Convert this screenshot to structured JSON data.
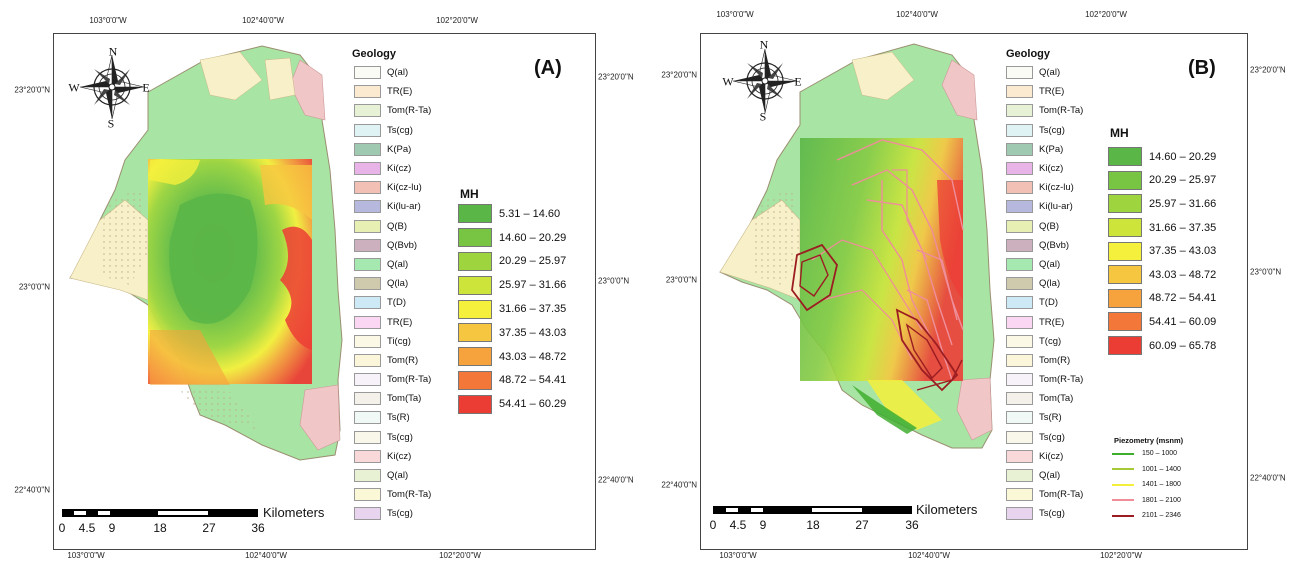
{
  "panels": [
    {
      "label": "(A)",
      "coords": {
        "top": [
          "103°0'0\"W",
          "102°40'0\"W",
          "102°20'0\"W"
        ],
        "bottom": [
          "103°0'0\"W",
          "102°40'0\"W",
          "102°20'0\"W"
        ],
        "left": [
          "23°20'0\"N",
          "23°0'0\"N",
          "22°40'0\"N"
        ],
        "right": [
          "23°20'0\"N",
          "23°0'0\"N",
          "22°40'0\"N"
        ]
      },
      "geology_title": "Geology",
      "geology_units": [
        "Q(al)",
        "TR(E)",
        "Tom(R-Ta)",
        "Ts(cg)",
        "K(Pa)",
        "Ki(cz)",
        "Ki(cz-lu)",
        "Ki(lu-ar)",
        "Q(B)",
        "Q(Bvb)",
        "Q(al)",
        "Q(la)",
        "T(D)",
        "TR(E)",
        "Ti(cg)",
        "Tom(R)",
        "Tom(R-Ta)",
        "Tom(Ta)",
        "Ts(R)",
        "Ts(cg)",
        "Ki(cz)",
        "Q(al)",
        "Tom(R-Ta)",
        "Ts(cg)"
      ],
      "mh_title": "MH",
      "mh_classes": [
        "5.31 – 14.60",
        "14.60 – 20.29",
        "20.29 – 25.97",
        "25.97 – 31.66",
        "31.66 – 37.35",
        "37.35 – 43.03",
        "43.03 – 48.72",
        "48.72 – 54.41",
        "54.41 – 60.29"
      ],
      "scale": {
        "unit": "Kilometers",
        "ticks": [
          "0",
          "4.5",
          "9",
          "18",
          "27",
          "36"
        ]
      },
      "compass": {
        "n": "N",
        "s": "S",
        "e": "E",
        "w": "W"
      }
    },
    {
      "label": "(B)",
      "coords": {
        "top": [
          "103°0'0\"W",
          "102°40'0\"W",
          "102°20'0\"W"
        ],
        "bottom": [
          "103°0'0\"W",
          "102°40'0\"W",
          "102°20'0\"W"
        ],
        "left": [
          "23°20'0\"N",
          "23°0'0\"N",
          "22°40'0\"N"
        ],
        "right": [
          "23°20'0\"N",
          "23°0'0\"N",
          "22°40'0\"N"
        ]
      },
      "geology_title": "Geology",
      "geology_units": [
        "Q(al)",
        "TR(E)",
        "Tom(R-Ta)",
        "Ts(cg)",
        "K(Pa)",
        "Ki(cz)",
        "Ki(cz-lu)",
        "Ki(lu-ar)",
        "Q(B)",
        "Q(Bvb)",
        "Q(al)",
        "Q(la)",
        "T(D)",
        "TR(E)",
        "T(cg)",
        "Tom(R)",
        "Tom(R-Ta)",
        "Tom(Ta)",
        "Ts(R)",
        "Ts(cg)",
        "Ki(cz)",
        "Q(al)",
        "Tom(R-Ta)",
        "Ts(cg)"
      ],
      "mh_title": "MH",
      "mh_classes": [
        "14.60 – 20.29",
        "20.29 – 25.97",
        "25.97 – 31.66",
        "31.66 – 37.35",
        "37.35 – 43.03",
        "43.03 – 48.72",
        "48.72 – 54.41",
        "54.41 – 60.09",
        "60.09 – 65.78"
      ],
      "piezometry_title": "Piezometry (msnm)",
      "piezometry_classes": [
        "150 – 1000",
        "1001 – 1400",
        "1401 – 1800",
        "1801 – 2100",
        "2101 – 2346"
      ],
      "scale": {
        "unit": "Kilometers",
        "ticks": [
          "0",
          "4.5",
          "9",
          "18",
          "27",
          "36"
        ]
      },
      "compass": {
        "n": "N",
        "s": "S",
        "e": "E",
        "w": "W"
      }
    }
  ],
  "colors": {
    "geology": [
      "#fbfbf6",
      "#fbe9d0",
      "#e6f1d6",
      "#dff3f5",
      "#9fc9b0",
      "#e8b3e6",
      "#f2c0b5",
      "#b7b8de",
      "#e7efb3",
      "#cdb0bd",
      "#a5e9b0",
      "#cfcaae",
      "#cde9f5",
      "#fbd7f4",
      "#fbf8e6",
      "#fbf6da",
      "#f7f2fa",
      "#f4f1ea",
      "#f0f9f6",
      "#f9f7ea",
      "#f8d8d8",
      "#e9f1d4",
      "#fbf8d8",
      "#e8d4ef"
    ],
    "mh_a": [
      "#5ab647",
      "#78c544",
      "#9ed53f",
      "#cde53a",
      "#f5f03c",
      "#f7c640",
      "#f6a23d",
      "#f27738",
      "#ec3d35"
    ],
    "mh_b": [
      "#5ab647",
      "#78c544",
      "#9ed53f",
      "#cde53a",
      "#f5f03c",
      "#f7c640",
      "#f6a23d",
      "#f27738",
      "#ec3d35"
    ],
    "piezometry": [
      "#3fae2f",
      "#a6c93a",
      "#f3ef3a",
      "#ef8e9a",
      "#9b1d22"
    ],
    "terrain_green": "#a8e4a4",
    "terrain_pink": "#f1c6c6",
    "terrain_cream": "#f8f0c8"
  }
}
